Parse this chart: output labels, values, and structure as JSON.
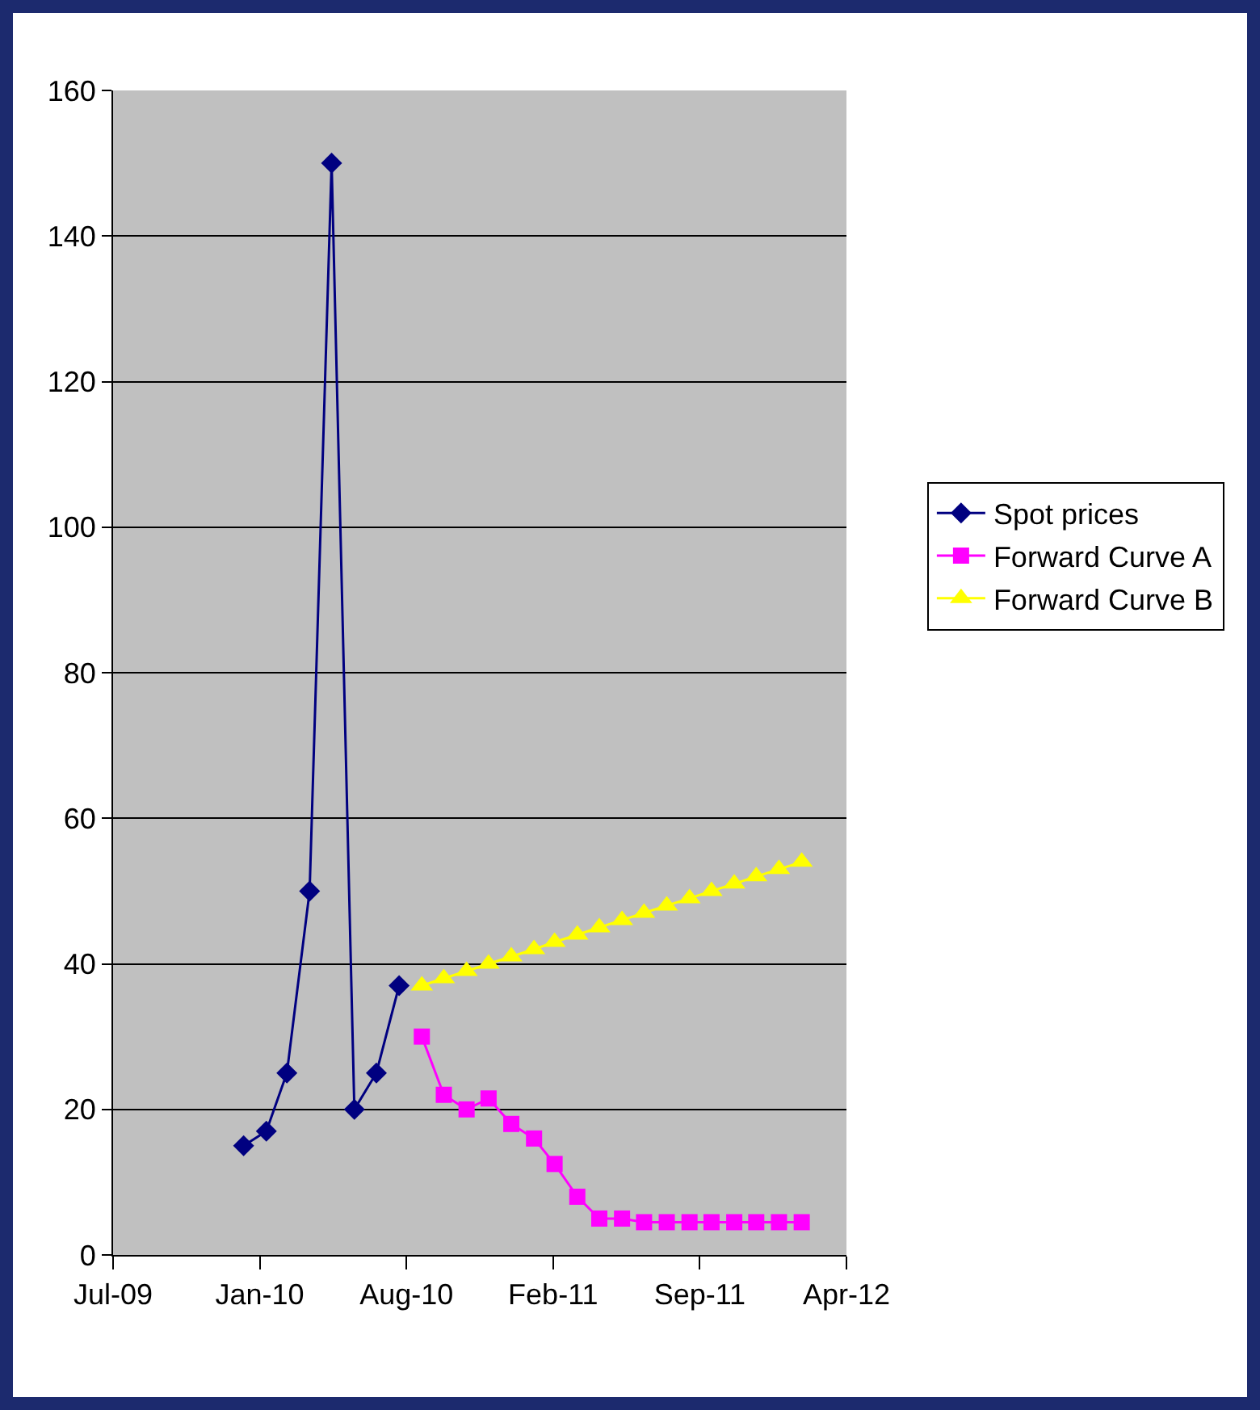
{
  "chart_data": {
    "type": "line",
    "xlim": [
      "2009-07-06",
      "2012-04-01"
    ],
    "xticks": [
      {
        "value": "2009-07-06",
        "label": "Jul-09"
      },
      {
        "value": "2010-01-22",
        "label": "Jan-10"
      },
      {
        "value": "2010-08-10",
        "label": "Aug-10"
      },
      {
        "value": "2011-02-26",
        "label": "Feb-11"
      },
      {
        "value": "2011-09-14",
        "label": "Sep-11"
      },
      {
        "value": "2012-04-01",
        "label": "Apr-12"
      }
    ],
    "ylim": [
      0,
      160
    ],
    "yticks": [
      0,
      20,
      40,
      60,
      80,
      100,
      120,
      140,
      160
    ],
    "grid": "y",
    "legend": "right",
    "series": [
      {
        "name": "Spot prices",
        "color": "#000080",
        "marker": "diamond",
        "x": [
          "2009-12-31",
          "2010-01-31",
          "2010-02-28",
          "2010-03-31",
          "2010-04-30",
          "2010-05-31",
          "2010-06-30",
          "2010-07-31"
        ],
        "values": [
          15,
          17,
          25,
          50,
          150,
          20,
          25,
          37
        ]
      },
      {
        "name": "Forward Curve A",
        "color": "#ff00ff",
        "marker": "square",
        "x": [
          "2010-08-31",
          "2010-09-30",
          "2010-10-31",
          "2010-11-30",
          "2010-12-31",
          "2011-01-31",
          "2011-02-28",
          "2011-03-31",
          "2011-04-30",
          "2011-05-31",
          "2011-06-30",
          "2011-07-31",
          "2011-08-31",
          "2011-09-30",
          "2011-10-31",
          "2011-11-30",
          "2011-12-31",
          "2012-01-31"
        ],
        "values": [
          30,
          22,
          20,
          21.5,
          18,
          16,
          12.5,
          8,
          5,
          5,
          4.5,
          4.5,
          4.5,
          4.5,
          4.5,
          4.5,
          4.5,
          4.5
        ]
      },
      {
        "name": "Forward Curve B",
        "color": "#ffff00",
        "marker": "triangle",
        "x": [
          "2010-08-31",
          "2010-09-30",
          "2010-10-31",
          "2010-11-30",
          "2010-12-31",
          "2011-01-31",
          "2011-02-28",
          "2011-03-31",
          "2011-04-30",
          "2011-05-31",
          "2011-06-30",
          "2011-07-31",
          "2011-08-31",
          "2011-09-30",
          "2011-10-31",
          "2011-11-30",
          "2011-12-31",
          "2012-01-31"
        ],
        "values": [
          37,
          38,
          39,
          40,
          41,
          42,
          43,
          44,
          45,
          46,
          47,
          48,
          49,
          50,
          51,
          52,
          53,
          54
        ]
      }
    ]
  }
}
